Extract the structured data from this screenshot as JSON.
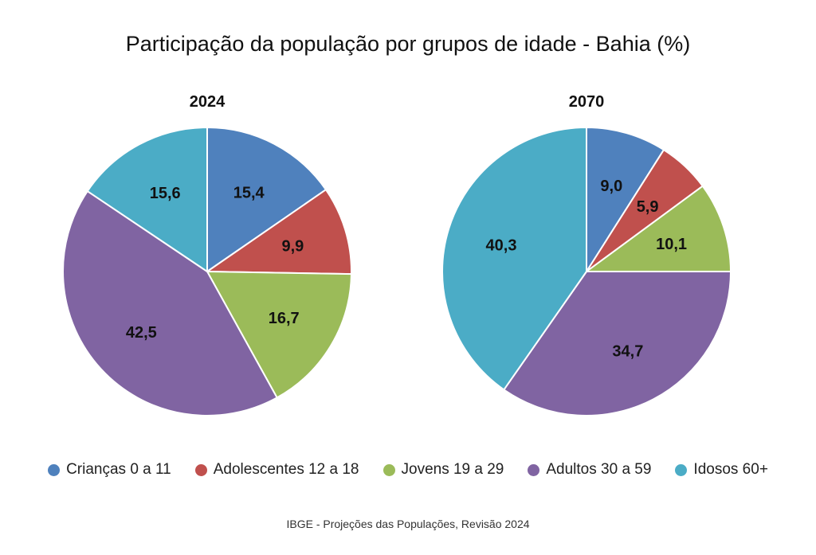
{
  "chart_data": {
    "type": "pie",
    "title": "Participação da população por grupos de idade - Bahia (%)",
    "source": "IBGE - Projeções das Populações, Revisão 2024",
    "legend_position": "bottom",
    "categories": [
      "Crianças 0 a 11",
      "Adolescentes 12 a 18",
      "Jovens 19 a 29",
      "Adultos 30 a 59",
      "Idosos 60+"
    ],
    "colors": [
      "#4f81bd",
      "#c0504d",
      "#9bbb59",
      "#8064a2",
      "#4bacc6"
    ],
    "pies": [
      {
        "name": "2024",
        "values": [
          15.4,
          9.9,
          16.7,
          42.5,
          15.6
        ],
        "labels": [
          "15,4",
          "9,9",
          "16,7",
          "42,5",
          "15,6"
        ]
      },
      {
        "name": "2070",
        "values": [
          9.0,
          5.9,
          10.1,
          34.7,
          40.3
        ],
        "labels": [
          "9,0",
          "5,9",
          "10,1",
          "34,7",
          "40,3"
        ]
      }
    ]
  }
}
